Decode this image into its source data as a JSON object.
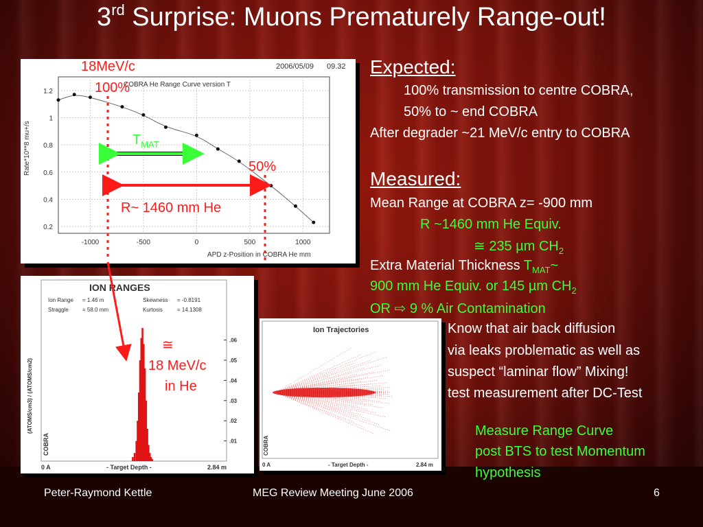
{
  "title": {
    "pre": "3",
    "sup": "rd",
    "post": " Surprise: Muons Prematurely Range-out!"
  },
  "plot1": {
    "date": "2006/05/09",
    "time": "09.32",
    "subtitle": "COBRA He Range Curve version T",
    "ylabel": "Rate*10**8 mu+/s",
    "xlabel": "APD z-Position in COBRA He mm",
    "yticks": [
      "0.2",
      "0.4",
      "0.6",
      "0.8",
      "1",
      "1.2"
    ],
    "xticks": [
      "-1000",
      "-500",
      "0",
      "500",
      "1000"
    ]
  },
  "chart_data": [
    {
      "type": "scatter",
      "title": "COBRA He Range Curve version T",
      "xlabel": "APD z-Position in COBRA He mm",
      "ylabel": "Rate*10**8 mu+/s",
      "xlim": [
        -1300,
        1250
      ],
      "ylim": [
        0.15,
        1.3
      ],
      "points": [
        {
          "x": -1300,
          "y": 1.13
        },
        {
          "x": -1150,
          "y": 1.17
        },
        {
          "x": -1000,
          "y": 1.15
        },
        {
          "x": -700,
          "y": 1.08
        },
        {
          "x": -500,
          "y": 1.02
        },
        {
          "x": -290,
          "y": 0.93
        },
        {
          "x": 0,
          "y": 0.87
        },
        {
          "x": 200,
          "y": 0.77
        },
        {
          "x": 400,
          "y": 0.68
        },
        {
          "x": 700,
          "y": 0.5
        },
        {
          "x": 930,
          "y": 0.35
        },
        {
          "x": 1100,
          "y": 0.23
        }
      ]
    },
    {
      "type": "bar",
      "title": "ION RANGES",
      "xlabel": "- Target Depth -",
      "ylabel": "(ATOMS/cm3) / (ATOMS/cm2)",
      "xlim": [
        0,
        2.84
      ],
      "ylim": [
        0,
        0.068
      ],
      "x": [
        1.3,
        1.33,
        1.36,
        1.38,
        1.4,
        1.42,
        1.44,
        1.46,
        1.48,
        1.5,
        1.52,
        1.54,
        1.56,
        1.58,
        1.6,
        1.62
      ],
      "values": [
        0.002,
        0.004,
        0.01,
        0.02,
        0.034,
        0.05,
        0.061,
        0.066,
        0.058,
        0.046,
        0.03,
        0.016,
        0.008,
        0.004,
        0.002,
        0.001
      ]
    }
  ],
  "plot2": {
    "header": "ION RANGES",
    "ion_range_label": "Ion Range",
    "ion_range_value": "= 1.46 m",
    "straggle_label": "Straggle",
    "straggle_value": "= 58.0 mm",
    "skewness_label": "Skewness",
    "skewness_value": "= -0.8191",
    "kurtosis_label": "Kurtosis",
    "kurtosis_value": "= 14.1308",
    "yticks": [
      ".06",
      ".05",
      ".04",
      ".03",
      ".02",
      ".01"
    ],
    "ylabel": "(ATOMS/cm3) / (ATOMS/cm2)",
    "cobra_label": "COBRA",
    "x_start": "0 A",
    "x_mid": "- Target Depth -",
    "x_end": "2.84 m"
  },
  "plot3": {
    "header": "Ion Trajectories",
    "x_start": "0 A",
    "x_mid": "- Target Depth -",
    "x_end": "2.84 m",
    "cobra_label": "COBRA"
  },
  "annotations": {
    "momentum": "18MeV/c",
    "percent100": "100%",
    "tmat_t": "T",
    "tmat_sub": "MAT",
    "percent50": "50%",
    "range": "R~ 1460 mm He",
    "approx_sym": "≅",
    "approx_line1": "18 MeV/c",
    "approx_line2": "in He"
  },
  "right": {
    "expected_heading": "Expected:",
    "exp1": "100% transmission to centre COBRA,",
    "exp2": "50% to ~ end COBRA",
    "exp3": "After degrader ~21 MeV/c entry to COBRA",
    "measured_heading": "Measured:",
    "m1": "Mean Range at COBRA z= -900 mm",
    "m2": "R ~1460 mm He Equiv.",
    "m3_pre": "≅ 235 µm CH",
    "m3_sub": "2",
    "m4_pre": "Extra Material Thickness ",
    "m4_t": "T",
    "m4_sub": "MAT",
    "m4_tilde": "~",
    "m5_pre": "900 mm He Equiv. or 145 µm CH",
    "m5_sub": "2",
    "m6": " OR ⇨ 9 % Air Contamination",
    "w1": "Know that air back diffusion",
    "w2": "via leaks problematic as well as",
    "w3": "suspect “laminar flow”  Mixing!",
    "w4": "test measurement after DC-Test",
    "g1": "Measure Range Curve",
    "g2": "post BTS to test Momentum",
    "g3": "hypothesis"
  },
  "footer": {
    "author": "Peter-Raymond Kettle",
    "meeting": "MEG Review Meeting June 2006",
    "page": "6"
  },
  "colors": {
    "red_text": "#ff1a1a",
    "green_text": "#39ff39",
    "background": "#7a120b"
  }
}
